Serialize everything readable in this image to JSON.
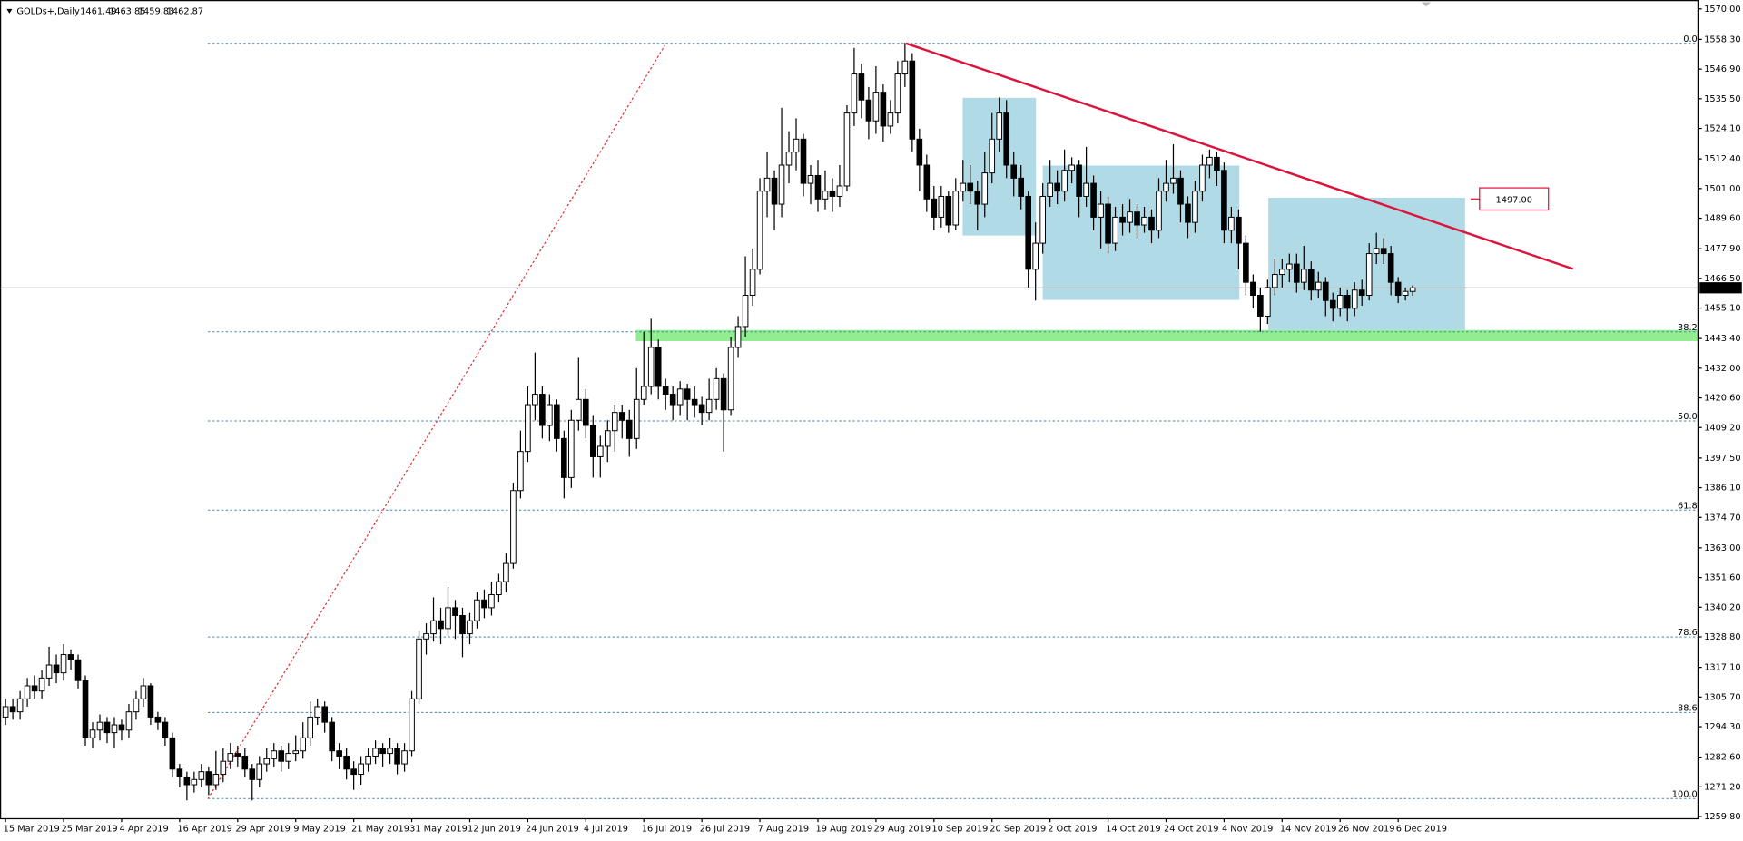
{
  "chart_data": {
    "type": "candlestick",
    "title": "GOLDs+,Daily",
    "categories": [
      "15 Mar 2019",
      null,
      null,
      null,
      null,
      null,
      null,
      null,
      "25 Mar 2019",
      null,
      null,
      null,
      null,
      null,
      null,
      null,
      "4 Apr 2019",
      null,
      null,
      null,
      null,
      null,
      null,
      null,
      "16 Apr 2019",
      null,
      null,
      null,
      null,
      null,
      null,
      null,
      "29 Apr 2019",
      null,
      null,
      null,
      null,
      null,
      null,
      null,
      "9 May 2019",
      null,
      null,
      null,
      null,
      null,
      null,
      null,
      "21 May 2019",
      null,
      null,
      null,
      null,
      null,
      null,
      null,
      "31 May 2019",
      null,
      null,
      null,
      null,
      null,
      null,
      null,
      "12 Jun 2019",
      null,
      null,
      null,
      null,
      null,
      null,
      null,
      "24 Jun 2019",
      null,
      null,
      null,
      null,
      null,
      null,
      null,
      "4 Jul 2019",
      null,
      null,
      null,
      null,
      null,
      null,
      null,
      "16 Jul 2019",
      null,
      null,
      null,
      null,
      null,
      null,
      null,
      "26 Jul 2019",
      null,
      null,
      null,
      null,
      null,
      null,
      null,
      "7 Aug 2019",
      null,
      null,
      null,
      null,
      null,
      null,
      null,
      "19 Aug 2019",
      null,
      null,
      null,
      null,
      null,
      null,
      null,
      "29 Aug 2019",
      null,
      null,
      null,
      null,
      null,
      null,
      null,
      "10 Sep 2019",
      null,
      null,
      null,
      null,
      null,
      null,
      null,
      "20 Sep 2019",
      null,
      null,
      null,
      null,
      null,
      null,
      null,
      "2 Oct 2019",
      null,
      null,
      null,
      null,
      null,
      null,
      null,
      "14 Oct 2019",
      null,
      null,
      null,
      null,
      null,
      null,
      null,
      "24 Oct 2019",
      null,
      null,
      null,
      null,
      null,
      null,
      null,
      "4 Nov 2019",
      null,
      null,
      null,
      null,
      null,
      null,
      null,
      "14 Nov 2019",
      null,
      null,
      null,
      null,
      null,
      null,
      null,
      "26 Nov 2019",
      null,
      null,
      null,
      null,
      null,
      null,
      null,
      "6 Dec 2019",
      null,
      null
    ],
    "candles": {
      "open": [
        1298,
        1302,
        1300,
        1305,
        1310,
        1308,
        1313,
        1318,
        1315,
        1322,
        1320,
        1312,
        1290,
        1293,
        1296,
        1292,
        1295,
        1293,
        1300,
        1305,
        1310,
        1298,
        1296,
        1290,
        1278,
        1275,
        1272,
        1274,
        1277,
        1272,
        1276,
        1281,
        1284,
        1283,
        1278,
        1274,
        1280,
        1282,
        1285,
        1281,
        1284,
        1285,
        1290,
        1298,
        1302,
        1296,
        1285,
        1283,
        1278,
        1276,
        1280,
        1283,
        1286,
        1284,
        1286,
        1280,
        1285,
        1305,
        1328,
        1330,
        1335,
        1332,
        1340,
        1337,
        1330,
        1335,
        1343,
        1340,
        1345,
        1350,
        1357,
        1385,
        1400,
        1418,
        1422,
        1410,
        1418,
        1405,
        1390,
        1412,
        1420,
        1410,
        1398,
        1402,
        1408,
        1415,
        1412,
        1405,
        1420,
        1425,
        1440,
        1425,
        1422,
        1418,
        1424,
        1420,
        1418,
        1415,
        1420,
        1428,
        1416,
        1440,
        1448,
        1460,
        1470,
        1500,
        1505,
        1495,
        1510,
        1515,
        1520,
        1503,
        1506,
        1497,
        1500,
        1498,
        1502,
        1530,
        1545,
        1535,
        1527,
        1538,
        1525,
        1530,
        1545,
        1550,
        1520,
        1510,
        1497,
        1490,
        1498,
        1487,
        1500,
        1503,
        1500,
        1495,
        1507,
        1520,
        1530,
        1510,
        1505,
        1498,
        1470,
        1480,
        1498,
        1503,
        1500,
        1508,
        1510,
        1498,
        1503,
        1490,
        1495,
        1480,
        1490,
        1488,
        1492,
        1487,
        1490,
        1485,
        1500,
        1503,
        1505,
        1495,
        1488,
        1500,
        1510,
        1513,
        1508,
        1485,
        1490,
        1480,
        1465,
        1460,
        1452,
        1463,
        1468,
        1470,
        1472,
        1465,
        1470,
        1462,
        1465,
        1458,
        1455,
        1460,
        1455,
        1462,
        1460,
        1476,
        1478,
        1476,
        1465,
        1460,
        1461.49
      ],
      "high": [
        1305,
        1305,
        1308,
        1313,
        1314,
        1316,
        1325,
        1322,
        1326,
        1324,
        1322,
        1314,
        1296,
        1299,
        1298,
        1298,
        1297,
        1303,
        1308,
        1313,
        1311,
        1300,
        1298,
        1292,
        1280,
        1277,
        1277,
        1280,
        1279,
        1285,
        1286,
        1288,
        1287,
        1286,
        1280,
        1283,
        1286,
        1288,
        1287,
        1288,
        1291,
        1296,
        1304,
        1305,
        1304,
        1298,
        1288,
        1286,
        1281,
        1283,
        1286,
        1289,
        1288,
        1290,
        1288,
        1288,
        1308,
        1331,
        1334,
        1344,
        1340,
        1348,
        1343,
        1340,
        1338,
        1346,
        1347,
        1350,
        1353,
        1361,
        1388,
        1408,
        1425,
        1438,
        1425,
        1422,
        1420,
        1408,
        1416,
        1436,
        1424,
        1414,
        1406,
        1412,
        1418,
        1418,
        1416,
        1432,
        1446,
        1451,
        1443,
        1428,
        1425,
        1427,
        1426,
        1425,
        1421,
        1428,
        1432,
        1430,
        1444,
        1452,
        1475,
        1478,
        1505,
        1515,
        1508,
        1532,
        1523,
        1528,
        1522,
        1510,
        1512,
        1508,
        1505,
        1510,
        1533,
        1555,
        1549,
        1540,
        1548,
        1541,
        1535,
        1550,
        1557,
        1553,
        1524,
        1514,
        1502,
        1502,
        1500,
        1505,
        1512,
        1510,
        1504,
        1515,
        1530,
        1536,
        1535,
        1515,
        1510,
        1500,
        1488,
        1503,
        1512,
        1508,
        1516,
        1513,
        1512,
        1517,
        1506,
        1500,
        1498,
        1494,
        1495,
        1497,
        1495,
        1494,
        1493,
        1505,
        1512,
        1518,
        1508,
        1498,
        1504,
        1514,
        1516,
        1515,
        1511,
        1494,
        1493,
        1483,
        1468,
        1463,
        1466,
        1474,
        1474,
        1476,
        1476,
        1479,
        1473,
        1469,
        1467,
        1461,
        1463,
        1462,
        1465,
        1466,
        1480,
        1484,
        1482,
        1479,
        1467,
        1463,
        1463.85
      ],
      "low": [
        1295,
        1297,
        1297,
        1302,
        1305,
        1305,
        1310,
        1311,
        1312,
        1316,
        1309,
        1287,
        1286,
        1289,
        1288,
        1286,
        1289,
        1290,
        1297,
        1302,
        1295,
        1293,
        1287,
        1275,
        1271,
        1266,
        1269,
        1271,
        1268,
        1270,
        1273,
        1278,
        1279,
        1275,
        1266,
        1271,
        1277,
        1279,
        1277,
        1278,
        1281,
        1282,
        1287,
        1295,
        1292,
        1281,
        1278,
        1274,
        1270,
        1272,
        1277,
        1280,
        1279,
        1280,
        1276,
        1277,
        1283,
        1303,
        1322,
        1327,
        1326,
        1329,
        1328,
        1321,
        1326,
        1332,
        1336,
        1337,
        1342,
        1346,
        1355,
        1382,
        1396,
        1412,
        1405,
        1404,
        1400,
        1382,
        1386,
        1408,
        1405,
        1390,
        1390,
        1396,
        1400,
        1405,
        1398,
        1401,
        1418,
        1422,
        1420,
        1416,
        1412,
        1414,
        1412,
        1413,
        1410,
        1412,
        1416,
        1400,
        1414,
        1436,
        1444,
        1456,
        1468,
        1490,
        1485,
        1490,
        1503,
        1508,
        1498,
        1495,
        1492,
        1493,
        1492,
        1494,
        1500,
        1525,
        1528,
        1520,
        1522,
        1519,
        1522,
        1526,
        1540,
        1515,
        1500,
        1492,
        1485,
        1486,
        1484,
        1485,
        1496,
        1495,
        1485,
        1490,
        1503,
        1515,
        1505,
        1498,
        1493,
        1463,
        1458,
        1476,
        1494,
        1495,
        1496,
        1503,
        1490,
        1494,
        1485,
        1478,
        1476,
        1477,
        1483,
        1484,
        1482,
        1484,
        1480,
        1482,
        1496,
        1499,
        1488,
        1482,
        1484,
        1496,
        1505,
        1502,
        1480,
        1480,
        1470,
        1460,
        1455,
        1446,
        1449,
        1460,
        1463,
        1465,
        1461,
        1462,
        1458,
        1459,
        1452,
        1450,
        1452,
        1450,
        1452,
        1456,
        1458,
        1472,
        1472,
        1460,
        1457,
        1458,
        1459.83
      ],
      "close": [
        1302,
        1300,
        1305,
        1310,
        1308,
        1313,
        1318,
        1315,
        1322,
        1320,
        1312,
        1290,
        1293,
        1296,
        1292,
        1295,
        1293,
        1300,
        1305,
        1310,
        1298,
        1296,
        1290,
        1278,
        1275,
        1272,
        1274,
        1277,
        1272,
        1276,
        1281,
        1284,
        1283,
        1278,
        1274,
        1280,
        1282,
        1285,
        1281,
        1284,
        1285,
        1290,
        1298,
        1302,
        1296,
        1285,
        1283,
        1278,
        1276,
        1280,
        1283,
        1286,
        1284,
        1286,
        1280,
        1285,
        1305,
        1328,
        1330,
        1335,
        1332,
        1340,
        1337,
        1330,
        1335,
        1343,
        1340,
        1345,
        1350,
        1357,
        1385,
        1400,
        1418,
        1422,
        1410,
        1418,
        1405,
        1390,
        1412,
        1420,
        1410,
        1398,
        1402,
        1408,
        1415,
        1412,
        1405,
        1420,
        1425,
        1440,
        1425,
        1422,
        1418,
        1424,
        1420,
        1418,
        1415,
        1420,
        1428,
        1416,
        1440,
        1448,
        1460,
        1470,
        1500,
        1505,
        1495,
        1510,
        1515,
        1520,
        1503,
        1506,
        1497,
        1500,
        1498,
        1502,
        1530,
        1545,
        1535,
        1527,
        1538,
        1525,
        1530,
        1545,
        1550,
        1520,
        1510,
        1497,
        1490,
        1498,
        1487,
        1500,
        1503,
        1500,
        1495,
        1507,
        1520,
        1530,
        1510,
        1505,
        1498,
        1470,
        1480,
        1498,
        1503,
        1500,
        1508,
        1510,
        1498,
        1503,
        1490,
        1495,
        1480,
        1490,
        1488,
        1492,
        1487,
        1490,
        1485,
        1500,
        1503,
        1505,
        1495,
        1488,
        1500,
        1510,
        1513,
        1508,
        1485,
        1490,
        1480,
        1465,
        1460,
        1452,
        1463,
        1468,
        1470,
        1472,
        1465,
        1470,
        1462,
        1465,
        1458,
        1455,
        1460,
        1455,
        1462,
        1460,
        1476,
        1478,
        1476,
        1465,
        1460,
        1461.49,
        1462.87
      ]
    },
    "ylim": [
      1258.95,
      1573.41
    ],
    "yticks": [
      {
        "value": 1570,
        "label": "1570.00"
      },
      {
        "value": 1558.3,
        "label": "1558.30"
      },
      {
        "value": 1546.9,
        "label": "1546.90"
      },
      {
        "value": 1535.5,
        "label": "1535.50"
      },
      {
        "value": 1524.1,
        "label": "1524.10"
      },
      {
        "value": 1512.4,
        "label": "1512.40"
      },
      {
        "value": 1501,
        "label": "1501.00"
      },
      {
        "value": 1489.6,
        "label": "1489.60"
      },
      {
        "value": 1477.9,
        "label": "1477.90"
      },
      {
        "value": 1466.5,
        "label": "1466.50"
      },
      {
        "value": 1455.1,
        "label": "1455.10"
      },
      {
        "value": 1443.4,
        "label": "1443.40"
      },
      {
        "value": 1432,
        "label": "1432.00"
      },
      {
        "value": 1420.6,
        "label": "1420.60"
      },
      {
        "value": 1409.2,
        "label": "1409.20"
      },
      {
        "value": 1397.5,
        "label": "1397.50"
      },
      {
        "value": 1386.1,
        "label": "1386.10"
      },
      {
        "value": 1374.7,
        "label": "1374.70"
      },
      {
        "value": 1363,
        "label": "1363.00"
      },
      {
        "value": 1351.6,
        "label": "1351.60"
      },
      {
        "value": 1340.2,
        "label": "1340.20"
      },
      {
        "value": 1328.8,
        "label": "1328.80"
      },
      {
        "value": 1317.1,
        "label": "1317.10"
      },
      {
        "value": 1305.7,
        "label": "1305.70"
      },
      {
        "value": 1294.3,
        "label": "1294.30"
      },
      {
        "value": 1282.6,
        "label": "1282.60"
      },
      {
        "value": 1271.2,
        "label": "1271.20"
      },
      {
        "value": 1259.8,
        "label": "1259.80"
      }
    ],
    "fib_levels": [
      {
        "value": 1556.8,
        "label": "0.0"
      },
      {
        "value": 1445.98,
        "label": "38.2"
      },
      {
        "value": 1411.75,
        "label": "50.0"
      },
      {
        "value": 1377.52,
        "label": "61.8"
      },
      {
        "value": 1328.78,
        "label": "78.6"
      },
      {
        "value": 1299.77,
        "label": "88.6"
      },
      {
        "value": 1266.7,
        "label": "100.0"
      }
    ],
    "level_label": {
      "value": 1497,
      "label": "1497.00"
    },
    "grid": false
  }
}
